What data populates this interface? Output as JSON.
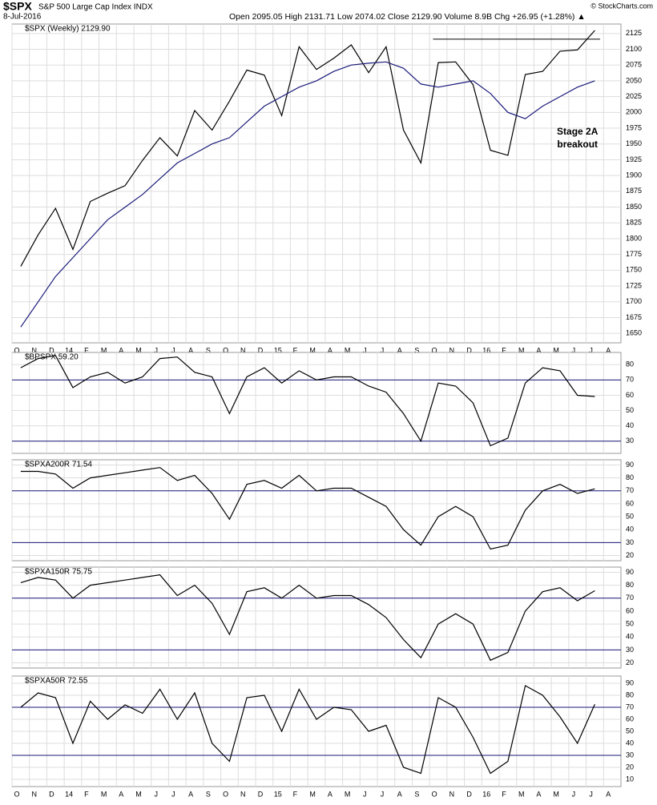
{
  "chart_data": [
    {
      "type": "line",
      "symbol": "$SPX",
      "title": "S&P 500 Large Cap Index INDX",
      "date": "8-Jul-2016",
      "quote": "Open 2095.05  High 2131.71  Low 2074.02  Close 2129.90  Volume 8.9B  Chg +26.95 (+1.28%) ▲",
      "source": "© StockCharts.com",
      "annotation": "Stage 2A\nbreakout",
      "categories": [
        "O",
        "N",
        "D",
        "14",
        "F",
        "M",
        "A",
        "M",
        "J",
        "J",
        "A",
        "S",
        "O",
        "N",
        "D",
        "15",
        "F",
        "M",
        "A",
        "M",
        "J",
        "J",
        "A",
        "S",
        "O",
        "N",
        "D",
        "16",
        "F",
        "M",
        "A",
        "M",
        "J",
        "J",
        "A"
      ],
      "ylim": [
        1635,
        2140
      ],
      "yticks": [
        1650,
        1675,
        1700,
        1725,
        1750,
        1775,
        1800,
        1825,
        1850,
        1875,
        1900,
        1925,
        1950,
        1975,
        2000,
        2025,
        2050,
        2075,
        2100,
        2125
      ],
      "hlines": [
        2116
      ],
      "grid": true,
      "series": [
        {
          "name": "$SPX (Weekly) 2129.90",
          "color": "#000000",
          "values": [
            1756,
            1806,
            1848,
            1783,
            1859,
            1872,
            1884,
            1924,
            1960,
            1931,
            2003,
            1972,
            2018,
            2067,
            2059,
            1995,
            2104,
            2068,
            2086,
            2107,
            2063,
            2104,
            1972,
            1920,
            2079,
            2080,
            2044,
            1940,
            1932,
            2060,
            2065,
            2097,
            2099,
            2129.9,
            null
          ]
        },
        {
          "name": null,
          "color": "#1a1a7a",
          "values": [
            1660,
            1700,
            1740,
            1770,
            1800,
            1830,
            1850,
            1870,
            1895,
            1920,
            1935,
            1950,
            1960,
            1985,
            2010,
            2025,
            2040,
            2050,
            2065,
            2075,
            2078,
            2080,
            2070,
            2045,
            2040,
            2045,
            2050,
            2030,
            2000,
            1990,
            2010,
            2025,
            2040,
            2050,
            null
          ]
        }
      ]
    },
    {
      "type": "line",
      "ylim": [
        22,
        88
      ],
      "yticks": [
        30,
        40,
        50,
        60,
        70,
        80
      ],
      "hlines": [
        30,
        70
      ],
      "grid": true,
      "series": [
        {
          "name": "$BPSPX 59.20",
          "color": "#000000",
          "values": [
            78,
            84,
            86,
            65,
            72,
            75,
            68,
            72,
            84,
            85,
            75,
            72,
            48,
            72,
            78,
            68,
            76,
            70,
            72,
            72,
            66,
            62,
            48,
            30,
            68,
            66,
            55,
            27,
            32,
            68,
            78,
            76,
            60,
            59.2,
            null
          ]
        }
      ]
    },
    {
      "type": "line",
      "ylim": [
        16,
        94
      ],
      "yticks": [
        20,
        30,
        40,
        50,
        60,
        70,
        80,
        90
      ],
      "hlines": [
        30,
        70
      ],
      "grid": true,
      "series": [
        {
          "name": "$SPXA200R 71.54",
          "color": "#000000",
          "values": [
            85,
            85,
            83,
            72,
            80,
            82,
            84,
            86,
            88,
            78,
            82,
            68,
            48,
            75,
            78,
            72,
            82,
            70,
            72,
            72,
            65,
            58,
            40,
            28,
            50,
            58,
            50,
            25,
            28,
            55,
            70,
            75,
            68,
            71.54,
            null
          ]
        }
      ]
    },
    {
      "type": "line",
      "ylim": [
        16,
        94
      ],
      "yticks": [
        20,
        30,
        40,
        50,
        60,
        70,
        80,
        90
      ],
      "hlines": [
        30,
        70
      ],
      "grid": true,
      "series": [
        {
          "name": "$SPXA150R 75.75",
          "color": "#000000",
          "values": [
            82,
            86,
            84,
            70,
            80,
            82,
            84,
            86,
            88,
            72,
            80,
            66,
            42,
            75,
            78,
            70,
            80,
            70,
            72,
            72,
            65,
            55,
            38,
            24,
            50,
            58,
            50,
            22,
            28,
            60,
            75,
            78,
            68,
            75.75,
            null
          ]
        }
      ]
    },
    {
      "type": "line",
      "ylim": [
        4,
        96
      ],
      "yticks": [
        10,
        20,
        30,
        40,
        50,
        60,
        70,
        80,
        90
      ],
      "hlines": [
        30,
        70
      ],
      "grid": true,
      "series": [
        {
          "name": "$SPXA50R 72.55",
          "color": "#000000",
          "values": [
            70,
            82,
            78,
            40,
            75,
            60,
            72,
            65,
            85,
            60,
            82,
            40,
            25,
            78,
            80,
            50,
            85,
            60,
            70,
            68,
            50,
            55,
            20,
            15,
            78,
            70,
            45,
            15,
            25,
            88,
            80,
            62,
            40,
            72.55,
            null
          ]
        }
      ]
    }
  ]
}
